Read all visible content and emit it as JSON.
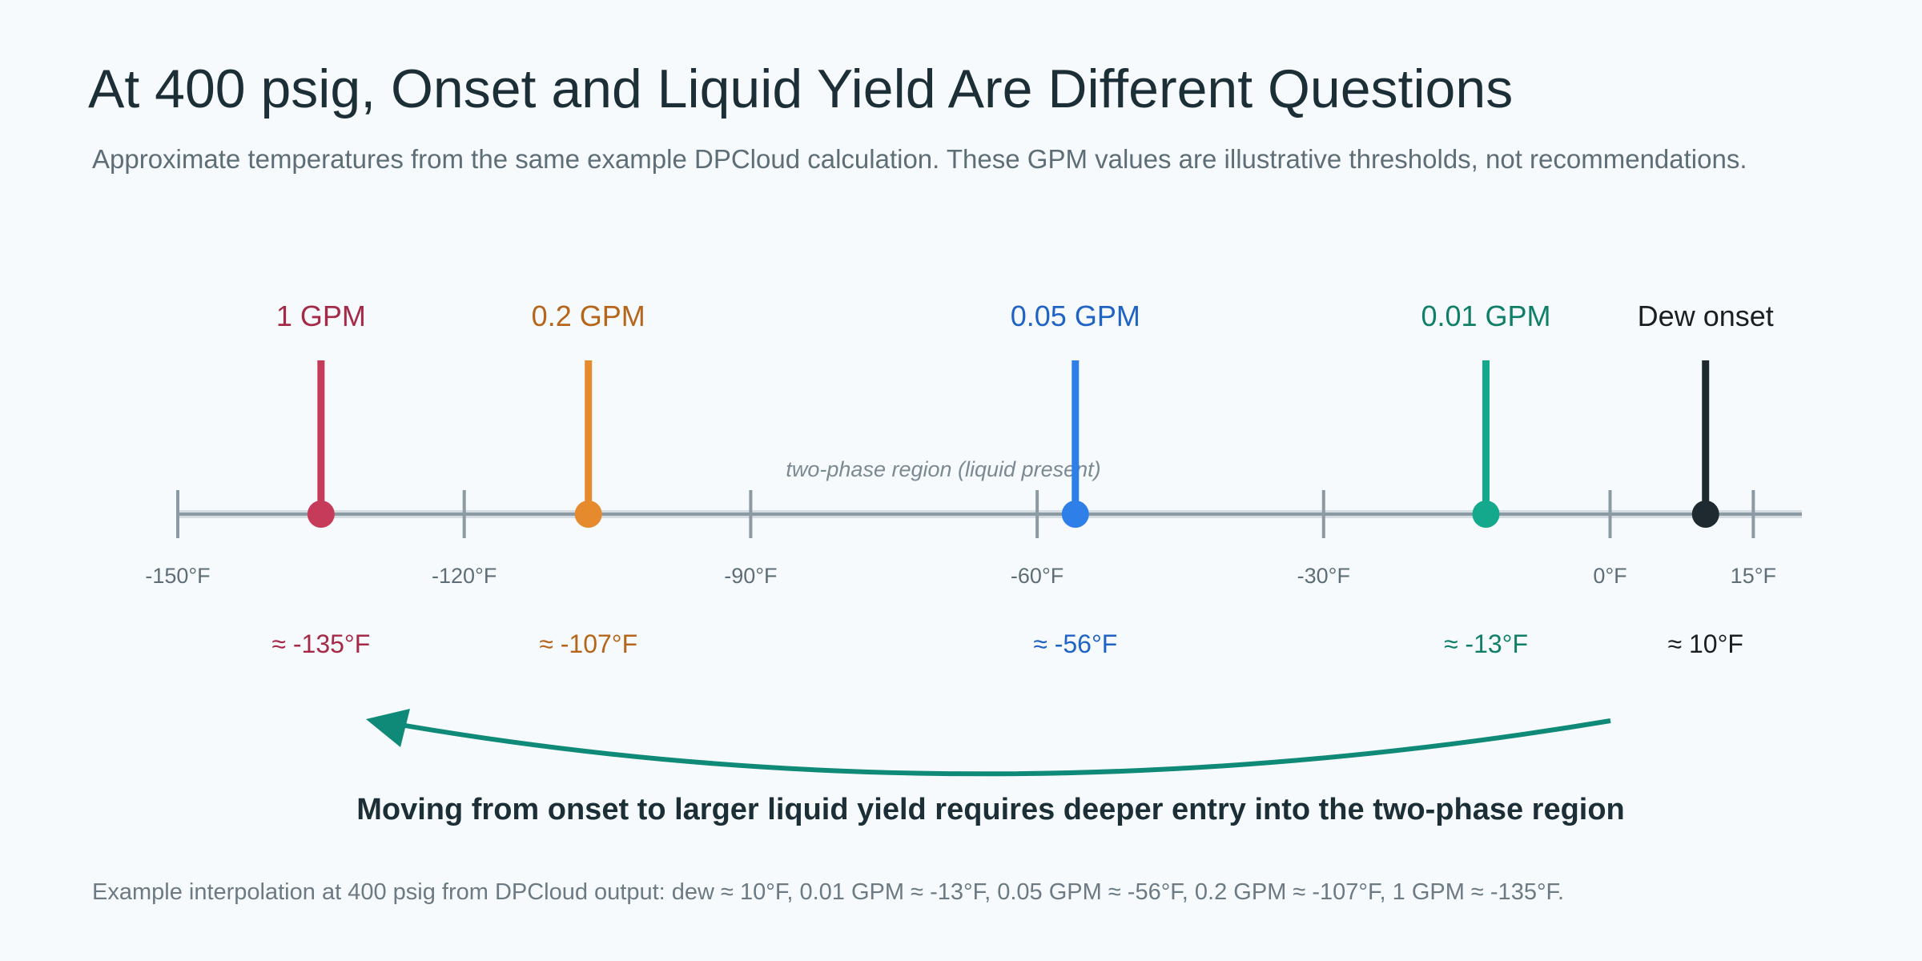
{
  "title": "At 400 psig, Onset and Liquid Yield Are Different Questions",
  "subtitle": "Approximate temperatures from the same example DPCloud calculation. These GPM values are illustrative thresholds, not recommendations.",
  "region_label": "two-phase region (liquid present)",
  "arrow_caption": "Moving from onset to larger liquid yield requires deeper entry into the two-phase region",
  "footnote": "Example interpolation at 400 psig from DPCloud output: dew ≈ 10°F, 0.01 GPM ≈ -13°F, 0.05 GPM ≈ -56°F, 0.2 GPM ≈ -107°F, 1 GPM ≈ -135°F.",
  "axis": {
    "ticks": [
      -150,
      -120,
      -90,
      -60,
      -30,
      0,
      15
    ],
    "tick_labels": [
      "-150°F",
      "-120°F",
      "-90°F",
      "-60°F",
      "-30°F",
      "0°F",
      "15°F"
    ]
  },
  "markers": [
    {
      "id": "1-gpm",
      "label": "1 GPM",
      "temp": -135,
      "value_label": "≈ -135°F",
      "color": "#c63b5a",
      "text_color": "#a52a48"
    },
    {
      "id": "0-2-gpm",
      "label": "0.2 GPM",
      "temp": -107,
      "value_label": "≈ -107°F",
      "color": "#e68a2e",
      "text_color": "#b5661b"
    },
    {
      "id": "0-05-gpm",
      "label": "0.05 GPM",
      "temp": -56,
      "value_label": "≈ -56°F",
      "color": "#2f7fe8",
      "text_color": "#1f63c4"
    },
    {
      "id": "0-01-gpm",
      "label": "0.01 GPM",
      "temp": -13,
      "value_label": "≈ -13°F",
      "color": "#14a98c",
      "text_color": "#0f7f69"
    },
    {
      "id": "dew-onset",
      "label": "Dew onset",
      "temp": 10,
      "value_label": "≈ 10°F",
      "color": "#1f2a30",
      "text_color": "#1a1f22"
    }
  ],
  "colors": {
    "axis": "#8b9aa3",
    "arrow": "#0f8a78",
    "background": "#f7fafc"
  }
}
